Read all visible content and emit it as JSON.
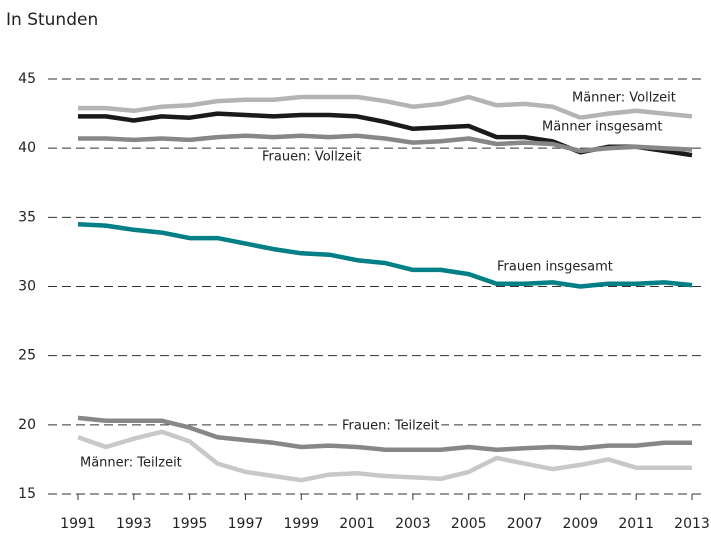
{
  "chart_data": {
    "type": "line",
    "title": "In Stunden",
    "x": [
      1991,
      1992,
      1993,
      1994,
      1995,
      1996,
      1997,
      1998,
      1999,
      2000,
      2001,
      2002,
      2003,
      2004,
      2005,
      2006,
      2007,
      2008,
      2009,
      2010,
      2011,
      2012,
      2013
    ],
    "xlim": [
      1991,
      2013
    ],
    "xticks": [
      1991,
      1993,
      1995,
      1997,
      1999,
      2001,
      2003,
      2005,
      2007,
      2009,
      2011,
      2013
    ],
    "ylim": [
      15,
      45
    ],
    "yticks": [
      15,
      20,
      25,
      30,
      35,
      40,
      45
    ],
    "grid": true,
    "series": [
      {
        "name": "Männer: Vollzeit",
        "color": "#b4b4b4",
        "values": [
          42.9,
          42.9,
          42.7,
          43.0,
          43.1,
          43.4,
          43.5,
          43.5,
          43.7,
          43.7,
          43.7,
          43.4,
          43.0,
          43.2,
          43.7,
          43.1,
          43.2,
          43.0,
          42.2,
          42.5,
          42.7,
          42.5,
          42.3
        ]
      },
      {
        "name": "Männer insgesamt",
        "color": "#1a1a1a",
        "values": [
          42.3,
          42.3,
          42.0,
          42.3,
          42.2,
          42.5,
          42.4,
          42.3,
          42.4,
          42.4,
          42.3,
          41.9,
          41.4,
          41.5,
          41.6,
          40.8,
          40.8,
          40.5,
          39.7,
          40.1,
          40.1,
          39.8,
          39.5
        ]
      },
      {
        "name": "Frauen: Vollzeit",
        "color": "#878787",
        "values": [
          40.7,
          40.7,
          40.6,
          40.7,
          40.6,
          40.8,
          40.9,
          40.8,
          40.9,
          40.8,
          40.9,
          40.7,
          40.4,
          40.5,
          40.7,
          40.3,
          40.4,
          40.3,
          39.8,
          40.0,
          40.1,
          40.0,
          39.9
        ]
      },
      {
        "name": "Frauen insgesamt",
        "color": "#007f86",
        "values": [
          34.5,
          34.4,
          34.1,
          33.9,
          33.5,
          33.5,
          33.1,
          32.7,
          32.4,
          32.3,
          31.9,
          31.7,
          31.2,
          31.2,
          30.9,
          30.2,
          30.2,
          30.3,
          30.0,
          30.2,
          30.2,
          30.3,
          30.1
        ]
      },
      {
        "name": "Frauen: Teilzeit",
        "color": "#878787",
        "values": [
          20.5,
          20.3,
          20.3,
          20.3,
          19.8,
          19.1,
          18.9,
          18.7,
          18.4,
          18.5,
          18.4,
          18.2,
          18.2,
          18.2,
          18.4,
          18.2,
          18.3,
          18.4,
          18.3,
          18.5,
          18.5,
          18.7,
          18.7
        ]
      },
      {
        "name": "Männer: Teilzeit",
        "color": "#c8c8c8",
        "values": [
          19.1,
          18.4,
          19.0,
          19.5,
          18.8,
          17.2,
          16.6,
          16.3,
          16.0,
          16.4,
          16.5,
          16.3,
          16.2,
          16.1,
          16.6,
          17.6,
          17.2,
          16.8,
          17.1,
          17.5,
          16.9,
          16.9,
          16.9
        ]
      }
    ]
  }
}
